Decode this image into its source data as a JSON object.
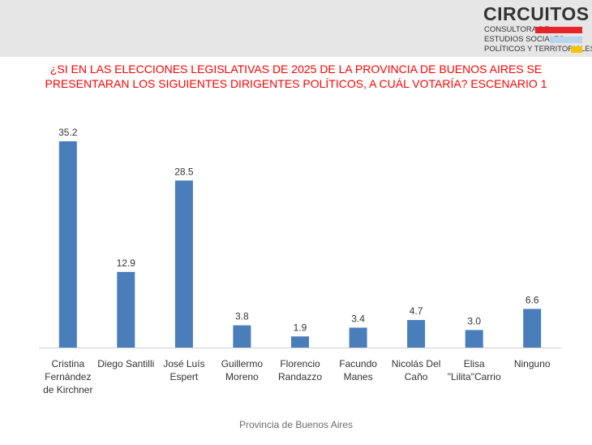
{
  "logo": {
    "name": "CIRCUITOS",
    "line1": "CONSULTORA DE",
    "line2": "ESTUDIOS SOCIALES,",
    "line3": "POLÍTICOS Y TERRITORIALES",
    "colors": {
      "red": "#e8232a",
      "blue": "#b8d6ee",
      "yellow": "#f5c400"
    }
  },
  "chart_data": {
    "type": "bar",
    "title_line1": "¿SI EN LAS ELECCIONES LEGISLATIVAS DE 2025 DE LA PROVINCIA DE BUENOS AIRES SE",
    "title_line2": "PRESENTARAN LOS SIGUIENTES DIRIGENTES POLÍTICOS, A CUÁL VOTARÍA? ESCENARIO 1",
    "categories": [
      [
        "Cristina",
        "Fernández",
        "de Kirchner"
      ],
      [
        "Diego Santilli"
      ],
      [
        "José Luís",
        "Espert"
      ],
      [
        "Guillermo",
        "Moreno"
      ],
      [
        "Florencio",
        "Randazzo"
      ],
      [
        "Facundo",
        "Manes"
      ],
      [
        "Nicolás Del",
        "Caño"
      ],
      [
        "Elisa",
        "\"Lilita\"Carrio"
      ],
      [
        "Ninguno"
      ]
    ],
    "values": [
      35.2,
      12.9,
      28.5,
      3.8,
      1.9,
      3.4,
      4.7,
      3.0,
      6.6
    ],
    "value_labels": [
      "35.2",
      "12.9",
      "28.5",
      "3.8",
      "1.9",
      "3.4",
      "4.7",
      "3.0",
      "6.6"
    ],
    "xlabel": "Provincia de Buenos Aires",
    "ylabel": "",
    "ylim": [
      0,
      35.2
    ],
    "grid": false,
    "legend": "none",
    "bar_color": "#4a7ebb",
    "title_color": "#ff0000"
  }
}
